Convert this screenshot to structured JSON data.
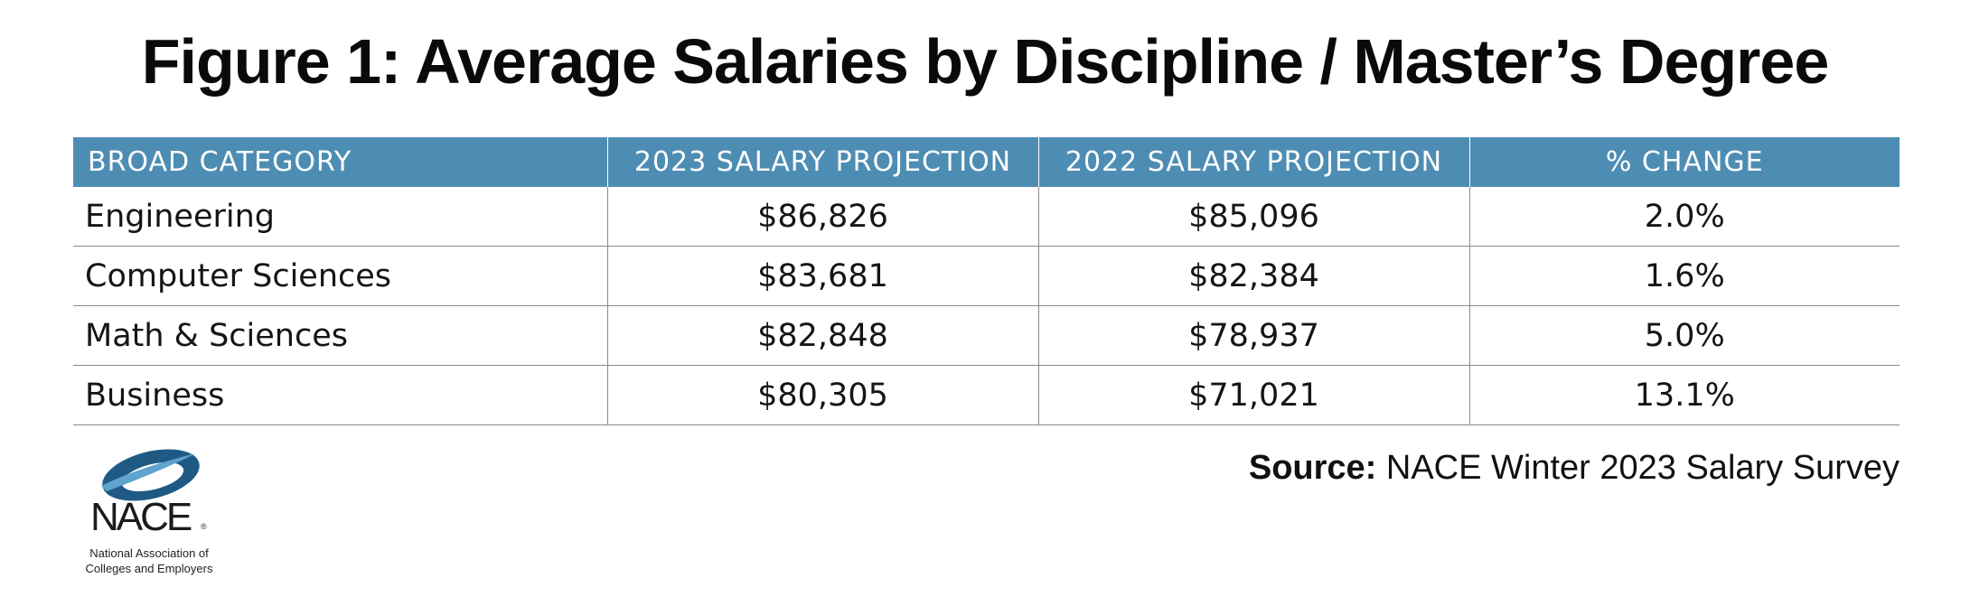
{
  "title": "Figure 1: Average Salaries by Discipline / Master’s Degree",
  "chart_data": {
    "type": "table",
    "title": "Figure 1: Average Salaries by Discipline / Master’s Degree",
    "columns": [
      "BROAD CATEGORY",
      "2023 SALARY PROJECTION",
      "2022 SALARY PROJECTION",
      "% CHANGE"
    ],
    "rows": [
      [
        "Engineering",
        "$86,826",
        "$85,096",
        "2.0%"
      ],
      [
        "Computer Sciences",
        "$83,681",
        "$82,384",
        "1.6%"
      ],
      [
        "Math & Sciences",
        "$82,848",
        "$78,937",
        "5.0%"
      ],
      [
        "Business",
        "$80,305",
        "$71,021",
        "13.1%"
      ]
    ]
  },
  "source": {
    "label": "Source:",
    "text": " NACE Winter 2023 Salary Survey"
  },
  "logo": {
    "name": "NACE",
    "registered": "®",
    "line1": "National Association of",
    "line2": "Colleges and Employers"
  },
  "colors": {
    "header_bg": "#4e8db3",
    "logo_dark": "#1f5a85",
    "logo_light": "#5fa3cf"
  }
}
